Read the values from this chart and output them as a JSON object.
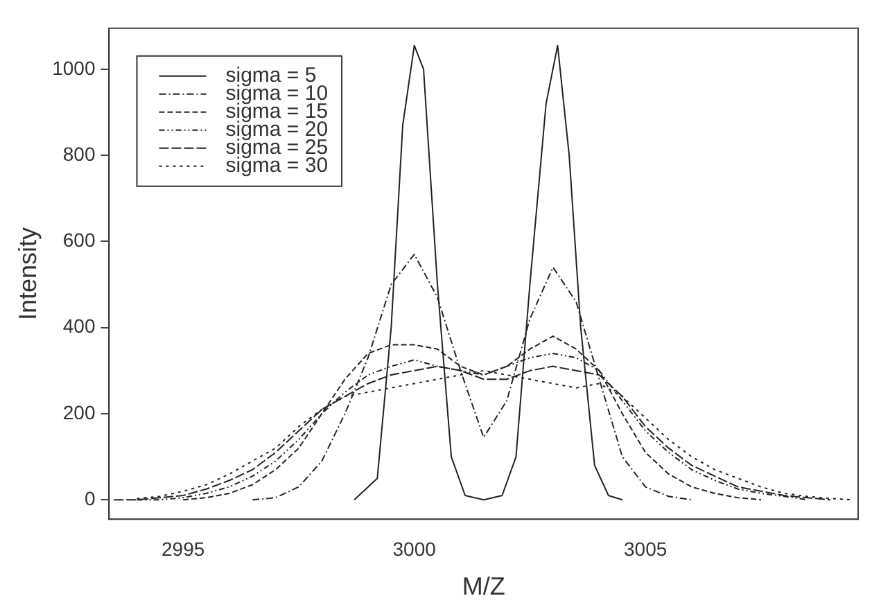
{
  "chart_data": {
    "type": "line",
    "xlabel": "M/Z",
    "ylabel": "Intensity",
    "xlim": [
      2993.4,
      3009.6
    ],
    "xticks": [
      2995,
      3000,
      3005
    ],
    "ylim": [
      -45,
      1095
    ],
    "yticks": [
      0,
      200,
      400,
      600,
      800,
      1000
    ],
    "grid": false,
    "legend": "top left",
    "marker": "none",
    "series": [
      {
        "name": "sigma = 5",
        "color": "#222222",
        "line_style": "solid",
        "x": [
          2998.7,
          2999.2,
          2999.5,
          2999.75,
          3000,
          3000.2,
          3000.5,
          3000.8,
          3001.1,
          3001.5,
          3001.9,
          3002.2,
          3002.5,
          3002.85,
          3003.1,
          3003.35,
          3003.6,
          3003.9,
          3004.2,
          3004.5
        ],
        "values": [
          0,
          50,
          400,
          870,
          1055,
          1000,
          500,
          100,
          10,
          0,
          10,
          100,
          500,
          920,
          1055,
          800,
          400,
          80,
          10,
          0
        ]
      },
      {
        "name": "sigma = 10",
        "color": "#222222",
        "line_style": "dashed",
        "x": [
          2996.5,
          2997,
          2997.5,
          2998,
          2998.5,
          2999,
          2999.5,
          3000,
          3000.5,
          3001,
          3001.5,
          3002,
          3002.5,
          3003,
          3003.5,
          3004,
          3004.5,
          3005,
          3005.5,
          3006
        ],
        "values": [
          0,
          5,
          30,
          90,
          200,
          330,
          500,
          570,
          470,
          300,
          145,
          230,
          420,
          540,
          460,
          280,
          100,
          30,
          8,
          0
        ]
      },
      {
        "name": "sigma = 15",
        "color": "#222222",
        "line_style": "dashed",
        "x": [
          2995,
          2995.5,
          2996,
          2996.5,
          2997,
          2997.5,
          2998,
          2998.5,
          2999,
          2999.5,
          3000,
          3000.5,
          3001,
          3001.5,
          3002,
          3002.5,
          3003,
          3003.5,
          3004,
          3004.5,
          3005,
          3005.5,
          3006,
          3006.5,
          3007,
          3007.5
        ],
        "values": [
          0,
          5,
          15,
          35,
          70,
          120,
          200,
          280,
          340,
          360,
          360,
          350,
          310,
          290,
          310,
          350,
          380,
          350,
          300,
          200,
          110,
          60,
          30,
          15,
          5,
          0
        ]
      },
      {
        "name": "sigma = 20",
        "color": "#222222",
        "line_style": "dashed",
        "x": [
          2994,
          2994.5,
          2995,
          2995.5,
          2996,
          2996.5,
          2997,
          2997.5,
          2998,
          2998.5,
          2999,
          2999.5,
          3000,
          3000.5,
          3001,
          3001.5,
          3002,
          3002.5,
          3003,
          3003.5,
          3004,
          3004.5,
          3005,
          3005.5,
          3006,
          3006.5,
          3007,
          3007.5,
          3008,
          3008.5
        ],
        "values": [
          0,
          0,
          5,
          15,
          30,
          55,
          90,
          140,
          200,
          250,
          290,
          310,
          325,
          310,
          300,
          290,
          310,
          330,
          340,
          330,
          300,
          230,
          160,
          110,
          70,
          45,
          25,
          15,
          8,
          0
        ]
      },
      {
        "name": "sigma = 25",
        "color": "#222222",
        "line_style": "dashed",
        "x": [
          2993.5,
          2994,
          2994.5,
          2995,
          2995.5,
          2996,
          2996.5,
          2997,
          2997.5,
          2998,
          2998.5,
          2999,
          2999.5,
          3000,
          3000.5,
          3001,
          3001.5,
          3002,
          3002.5,
          3003,
          3003.5,
          3004,
          3004.5,
          3005,
          3005.5,
          3006,
          3006.5,
          3007,
          3007.5,
          3008,
          3008.5,
          3009
        ],
        "values": [
          0,
          0,
          5,
          10,
          25,
          45,
          70,
          110,
          160,
          210,
          240,
          270,
          290,
          300,
          310,
          300,
          280,
          280,
          300,
          310,
          300,
          290,
          240,
          170,
          120,
          80,
          55,
          30,
          20,
          10,
          5,
          0
        ]
      },
      {
        "name": "sigma = 30",
        "color": "#222222",
        "line_style": "dotted",
        "x": [
          2994,
          2994.5,
          2995,
          2995.5,
          2996,
          2996.5,
          2997,
          2997.5,
          2998,
          2998.5,
          2999,
          2999.5,
          3000,
          3000.5,
          3001,
          3001.5,
          3002,
          3002.5,
          3003,
          3003.5,
          3004,
          3004.5,
          3005,
          3005.5,
          3006,
          3006.5,
          3007,
          3007.5,
          3008,
          3008.5,
          3009,
          3009.5
        ],
        "values": [
          3,
          8,
          20,
          35,
          60,
          90,
          120,
          170,
          210,
          240,
          250,
          260,
          270,
          280,
          290,
          300,
          290,
          280,
          270,
          260,
          270,
          240,
          190,
          140,
          100,
          70,
          50,
          30,
          15,
          8,
          3,
          0
        ]
      }
    ]
  }
}
